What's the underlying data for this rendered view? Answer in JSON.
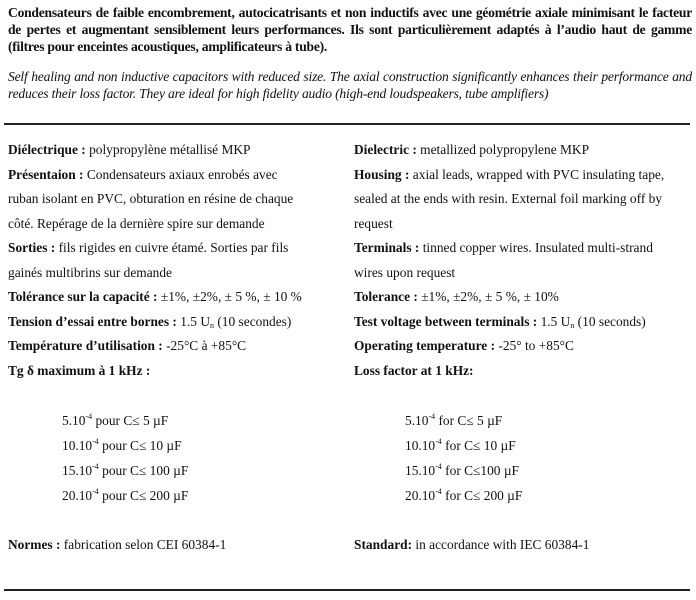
{
  "intro_fr": "Condensateurs de faible encombrement, autocicatrisants et non inductifs avec une géométrie axiale minimisant le facteur de pertes et augmentant sensiblement leurs performances. Ils sont particulièrement adaptés à l’audio haut de gamme (filtres pour enceintes acoustiques, amplificateurs à tube).",
  "intro_en": "Self healing and non inductive capacitors with reduced size. The axial construction significantly enhances their performance  and reduces their loss factor. They are ideal for high fidelity audio (high-end loudspeakers, tube amplifiers)",
  "fr": {
    "dielectric": {
      "label": "Diélectrique :",
      "text": " polypropylène métallisé MKP"
    },
    "housing": {
      "label": "Présentaion :",
      "text1": " Condensateurs axiaux enrobés avec",
      "text2": "ruban isolant en PVC, obturation en résine de chaque",
      "text3": "côté. Repérage de la dernière spire sur demande"
    },
    "terminals": {
      "label": "Sorties :",
      "text1": " fils rigides en cuivre étamé. Sorties par fils",
      "text2": "gainés multibrins sur demande"
    },
    "tolerance": {
      "label": "Tolérance sur la capacité :",
      "text": " ±1%, ±2%, ± 5 %, ± 10 %"
    },
    "test_voltage": {
      "label": "Tension d’essai entre bornes :",
      "pre": " 1.5 U",
      "sub": "n",
      "post": " (10 secondes)"
    },
    "temperature": {
      "label": "Température d’utilisation :",
      "text": " -25°C à +85°C"
    },
    "loss_title": "Tg δ maximum à 1 kHz :",
    "loss": [
      {
        "base": "5.10",
        "exp": "-4",
        "text": " pour C≤ 5 µF"
      },
      {
        "base": "10.10",
        "exp": "-4",
        "text": " pour C≤ 10 µF"
      },
      {
        "base": "15.10",
        "exp": "-4",
        "text": " pour C≤ 100 µF"
      },
      {
        "base": "20.10",
        "exp": "-4",
        "text": " pour C≤ 200 µF"
      }
    ],
    "standard": {
      "label": "Normes :",
      "text": " fabrication selon CEI 60384-1"
    }
  },
  "en": {
    "dielectric": {
      "label": "Dielectric :",
      "text": " metallized polypropylene MKP"
    },
    "housing": {
      "label": "Housing :",
      "text1": " axial leads, wrapped with PVC insulating tape,",
      "text2": "sealed at the ends with resin. External foil marking off by",
      "text3": "request"
    },
    "terminals": {
      "label": "Terminals :",
      "text1": " tinned copper wires. Insulated multi-strand",
      "text2": "wires upon request"
    },
    "tolerance": {
      "label": "Tolerance :",
      "text": " ±1%, ±2%, ± 5 %, ± 10%"
    },
    "test_voltage": {
      "label": "Test voltage between terminals :",
      "pre": " 1.5 U",
      "sub": "n",
      "post": " (10 seconds)"
    },
    "temperature": {
      "label": "Operating temperature :",
      "text": " -25° to +85°C"
    },
    "loss_title": "Loss factor at 1 kHz:",
    "loss": [
      {
        "base": "5.10",
        "exp": "-4",
        "text": " for C≤ 5 µF"
      },
      {
        "base": "10.10",
        "exp": "-4",
        "text": " for C≤ 10 µF"
      },
      {
        "base": "15.10",
        "exp": "-4",
        "text": " for C≤100 µF"
      },
      {
        "base": "20.10",
        "exp": "-4",
        "text": " for C≤ 200 µF"
      }
    ],
    "standard": {
      "label": "Standard:",
      "text": " in accordance with IEC 60384-1"
    }
  }
}
